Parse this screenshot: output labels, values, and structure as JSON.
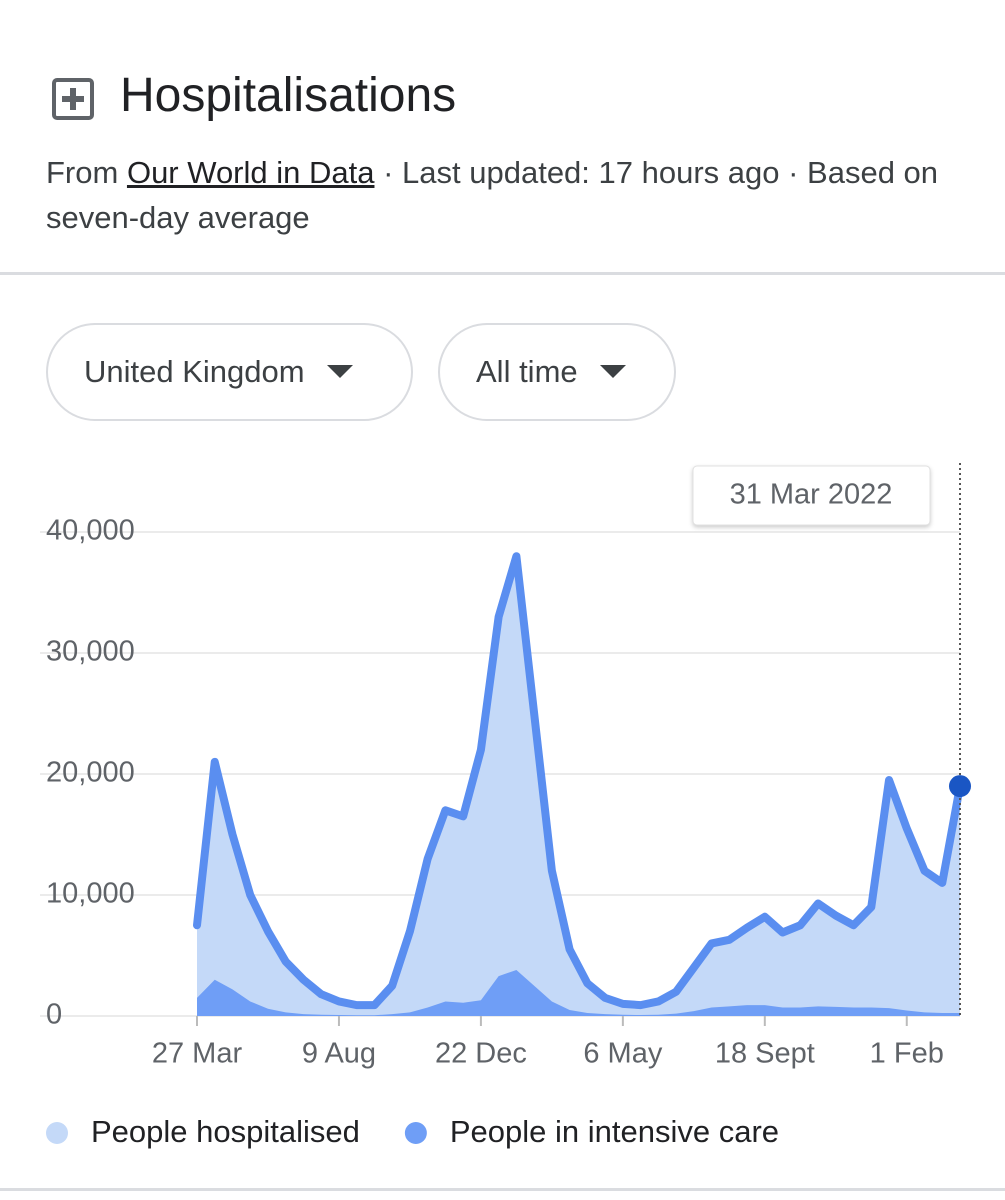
{
  "header": {
    "title": "Hospitalisations",
    "source_prefix": "From",
    "source_link": "Our World in Data",
    "source_suffix": "· Last updated: 17 hours ago · Based on seven-day average"
  },
  "filters": {
    "region": "United Kingdom",
    "period": "All time"
  },
  "chart_data": {
    "type": "area",
    "tooltip": "31 Mar 2022",
    "categories": [
      "27 Mar",
      null,
      null,
      null,
      null,
      null,
      null,
      null,
      "9 Aug",
      null,
      null,
      null,
      null,
      null,
      null,
      null,
      "22 Dec",
      null,
      null,
      null,
      null,
      null,
      null,
      null,
      "6 May",
      null,
      null,
      null,
      null,
      null,
      null,
      null,
      "18 Sept",
      null,
      null,
      null,
      null,
      null,
      null,
      null,
      "1 Feb",
      null,
      null,
      null
    ],
    "series": [
      {
        "name": "People hospitalised",
        "color": "#c4d9f8",
        "line_color": "#5a8ef0",
        "values": [
          7500,
          21000,
          15000,
          10000,
          7000,
          4500,
          3000,
          1800,
          1200,
          900,
          900,
          2500,
          7000,
          13000,
          17000,
          16500,
          22000,
          33000,
          38000,
          25000,
          12000,
          5500,
          2700,
          1500,
          1000,
          900,
          1200,
          2000,
          4000,
          6000,
          6300,
          7300,
          8200,
          6900,
          7500,
          9300,
          8300,
          7500,
          9000,
          19500,
          15500,
          12000,
          11000,
          19000
        ]
      },
      {
        "name": "People in intensive care",
        "color": "#6f9ef6",
        "values": [
          1500,
          3000,
          2200,
          1200,
          600,
          300,
          150,
          100,
          80,
          60,
          60,
          150,
          300,
          700,
          1200,
          1100,
          1300,
          3300,
          3800,
          2500,
          1200,
          500,
          250,
          150,
          100,
          80,
          100,
          200,
          400,
          700,
          800,
          900,
          900,
          700,
          700,
          800,
          750,
          700,
          700,
          650,
          450,
          300,
          250,
          250
        ]
      }
    ],
    "ylim": [
      0,
      40000
    ],
    "yticks": [
      0,
      {
        "value": 10000,
        "label": "10,000"
      },
      {
        "value": 20000,
        "label": "20,000"
      },
      {
        "value": 30000,
        "label": "30,000"
      },
      {
        "value": 40000,
        "label": "40,000"
      }
    ],
    "grid": true
  }
}
